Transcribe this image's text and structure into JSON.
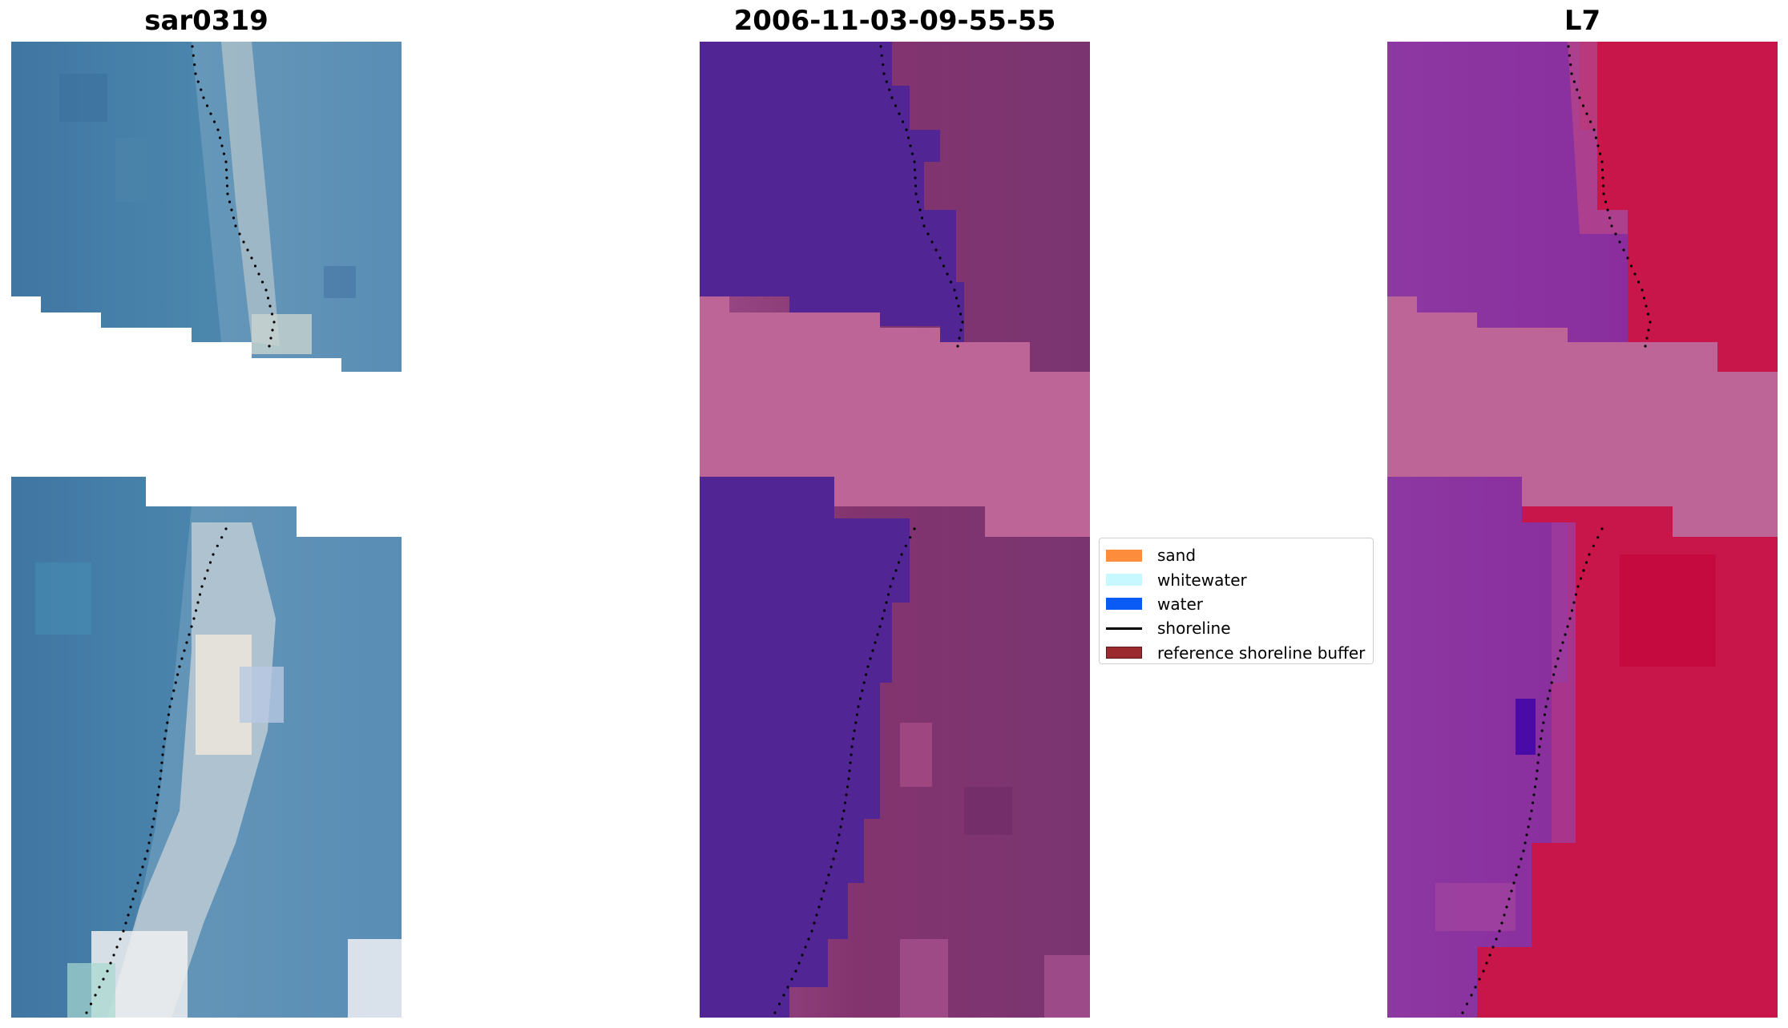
{
  "panels": [
    {
      "title": "sar0319"
    },
    {
      "title": "2006-11-03-09-55-55"
    },
    {
      "title": "L7"
    }
  ],
  "legend": {
    "items": [
      {
        "label": "sand",
        "color": "#fd8d3c",
        "kind": "patch"
      },
      {
        "label": "whitewater",
        "color": "#c8f8ff",
        "kind": "patch"
      },
      {
        "label": "water",
        "color": "#0a5bf5",
        "kind": "patch"
      },
      {
        "label": "shoreline",
        "color": "#000000",
        "kind": "line"
      },
      {
        "label": "reference shoreline buffer",
        "color": "#9a2a2e",
        "kind": "patch"
      }
    ]
  },
  "colors": {
    "rgb_water": "#4a80a8",
    "rgb_beach": "#d8dce0",
    "class_water": "#522595",
    "class_land": "#8a3a78",
    "buffer_pink": "#bd6596",
    "mndwi_water": "#8e34a4",
    "mndwi_land": "#c8164a",
    "shoreline_dots": "#000000"
  }
}
